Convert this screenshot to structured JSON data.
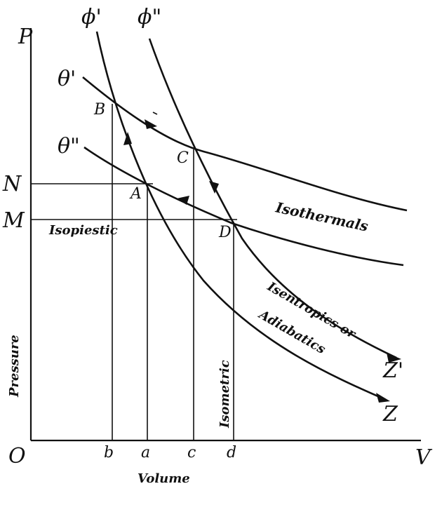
{
  "axes": {
    "p_label": "P",
    "v_label": "V",
    "origin_label": "O",
    "pressure_label": "Pressure",
    "volume_label": "Volume"
  },
  "curves": {
    "phi1": "ϕ'",
    "phi2": "ϕ\"",
    "theta1": "θ'",
    "theta2": "θ\"",
    "z_upper": "Z'",
    "z_lower": "Z"
  },
  "points": {
    "A": "A",
    "B": "B",
    "C": "C",
    "D": "D"
  },
  "pressure_ticks": {
    "N": "N",
    "M": "M"
  },
  "volume_ticks": {
    "b": "b",
    "a": "a",
    "c": "c",
    "d": "d"
  },
  "captions": {
    "isopiestic": "Isopiestic",
    "isothermals": "Isothermals",
    "isentropics_line1": "Isentropics or",
    "isentropics_line2": "Adiabatics",
    "isometric": "Isometric"
  }
}
